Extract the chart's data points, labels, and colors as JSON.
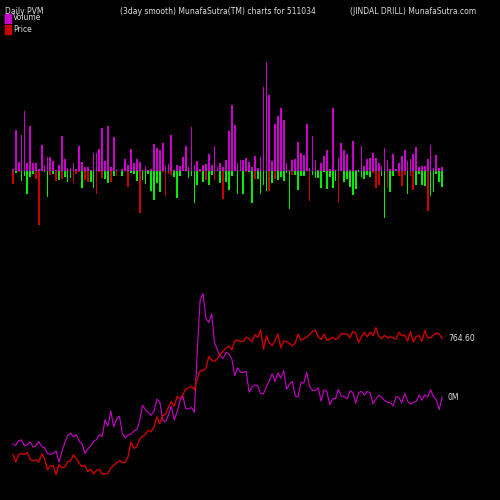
{
  "title_left": "Daily PVM",
  "title_center": "(3day smooth) MunafaSutra(TM) charts for 511034",
  "title_right": "(JINDAL DRILL) MunafaSutra.com",
  "legend_volume": "Volume",
  "legend_price": "Price",
  "label_0M": "0M",
  "label_price_end": "764.60",
  "background_color": "#000000",
  "text_color": "#dddddd",
  "volume_color_up": "#cc00cc",
  "volume_color_down_green": "#00ee00",
  "volume_color_down_red": "#cc0000",
  "price_line_color": "#cc0000",
  "volume_line_color": "#cc00cc",
  "title_fontsize": 5.5,
  "legend_fontsize": 5.5,
  "annotation_fontsize": 5.5
}
